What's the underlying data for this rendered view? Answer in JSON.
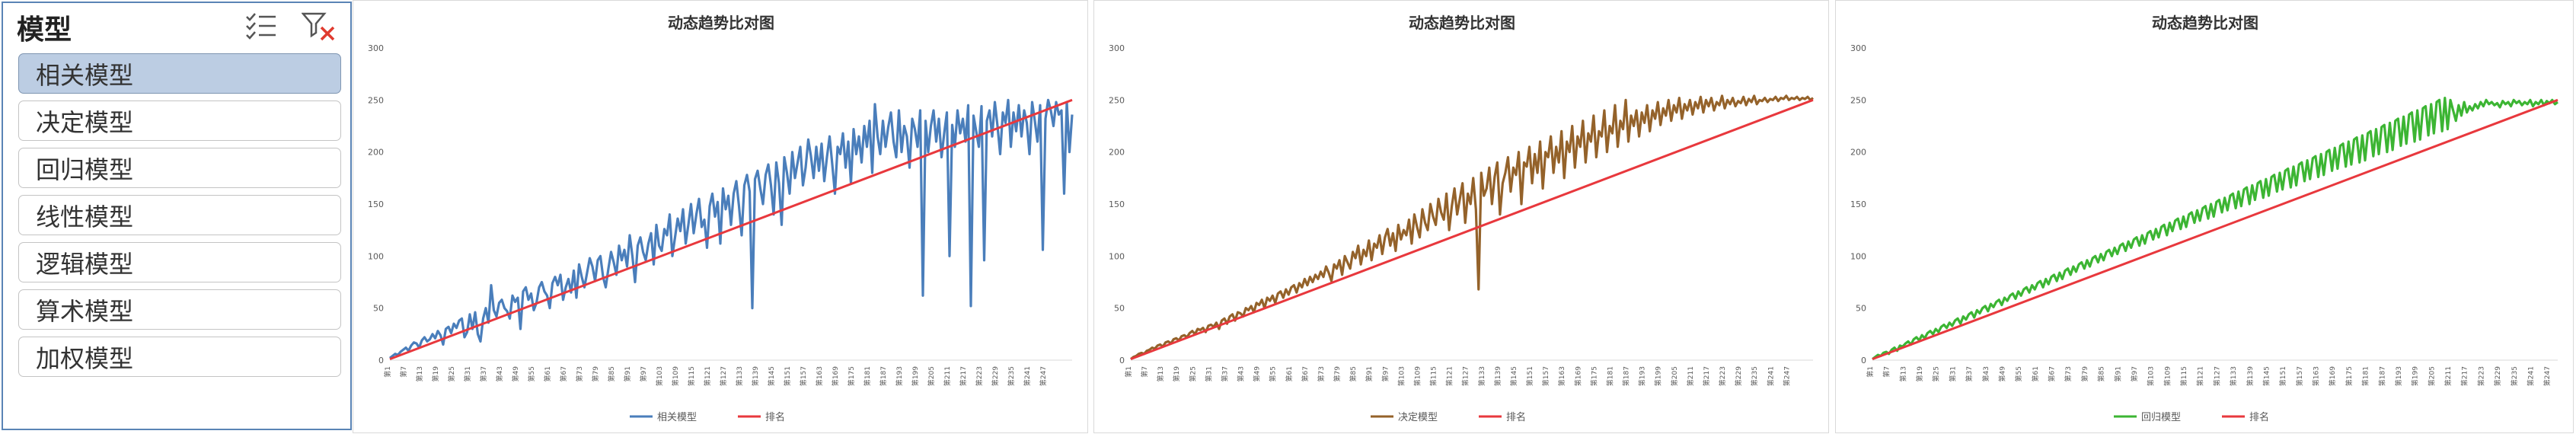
{
  "slicer": {
    "title": "模型",
    "multiselect_icon": "multi-select-list-icon",
    "clear_filter_icon": "clear-filter-icon",
    "items": [
      {
        "label": "相关模型",
        "selected": true
      },
      {
        "label": "决定模型",
        "selected": false
      },
      {
        "label": "回归模型",
        "selected": false
      },
      {
        "label": "线性模型",
        "selected": false
      },
      {
        "label": "逻辑模型",
        "selected": false
      },
      {
        "label": "算术模型",
        "selected": false
      },
      {
        "label": "加权模型",
        "selected": false
      }
    ]
  },
  "chart_data": [
    {
      "type": "line",
      "title": "动态趋势比对图",
      "ylim": [
        0,
        300
      ],
      "yticks": [
        0,
        50,
        100,
        150,
        200,
        250,
        300
      ],
      "xtick_labels": [
        "第1",
        "第7",
        "第13",
        "第19",
        "第25",
        "第31",
        "第37",
        "第43",
        "第49",
        "第55",
        "第61",
        "第67",
        "第73",
        "第79",
        "第85",
        "第91",
        "第97",
        "第103",
        "第109",
        "第115",
        "第121",
        "第127",
        "第133",
        "第139",
        "第145",
        "第151",
        "第157",
        "第163",
        "第169",
        "第175",
        "第181",
        "第187",
        "第193",
        "第199",
        "第205",
        "第211",
        "第217",
        "第223",
        "第229",
        "第235",
        "第241",
        "第247"
      ],
      "legend_position": "bottom",
      "grid": false,
      "series": [
        {
          "name": "相关模型",
          "color": "#4a7ebb",
          "values": [
            2,
            4,
            6,
            5,
            8,
            10,
            12,
            9,
            14,
            17,
            16,
            12,
            19,
            22,
            18,
            20,
            25,
            21,
            28,
            24,
            15,
            30,
            32,
            26,
            35,
            31,
            38,
            40,
            22,
            27,
            44,
            30,
            46,
            25,
            18,
            40,
            50,
            36,
            72,
            48,
            42,
            55,
            58,
            50,
            47,
            40,
            62,
            56,
            60,
            30,
            66,
            70,
            58,
            64,
            48,
            55,
            70,
            75,
            66,
            62,
            50,
            74,
            80,
            72,
            82,
            58,
            70,
            78,
            65,
            86,
            60,
            92,
            80,
            70,
            84,
            98,
            90,
            76,
            96,
            100,
            80,
            70,
            88,
            104,
            94,
            82,
            110,
            96,
            106,
            90,
            120,
            100,
            75,
            110,
            118,
            104,
            96,
            112,
            122,
            92,
            130,
            110,
            105,
            126,
            120,
            140,
            100,
            118,
            136,
            124,
            145,
            112,
            130,
            150,
            122,
            140,
            155,
            128,
            135,
            108,
            148,
            160,
            138,
            152,
            112,
            165,
            145,
            158,
            130,
            160,
            172,
            148,
            120,
            168,
            178,
            162,
            50,
            174,
            182,
            165,
            150,
            178,
            188,
            168,
            140,
            190,
            170,
            130,
            195,
            180,
            160,
            200,
            175,
            190,
            205,
            168,
            185,
            212,
            196,
            175,
            205,
            182,
            208,
            172,
            195,
            215,
            188,
            160,
            205,
            198,
            218,
            185,
            210,
            170,
            222,
            198,
            215,
            190,
            225,
            205,
            230,
            180,
            246,
            215,
            198,
            230,
            205,
            224,
            238,
            210,
            195,
            240,
            200,
            225,
            215,
            185,
            232,
            222,
            205,
            240,
            62,
            230,
            200,
            225,
            240,
            210,
            232,
            195,
            218,
            238,
            100,
            226,
            205,
            240,
            218,
            232,
            210,
            245,
            52,
            235,
            220,
            205,
            244,
            96,
            230,
            240,
            215,
            248,
            225,
            198,
            238,
            228,
            250,
            205,
            238,
            220,
            245,
            215,
            240,
            228,
            198,
            248,
            230,
            210,
            245,
            106,
            232,
            250,
            240,
            225,
            248,
            236,
            240,
            160,
            248,
            200,
            236
          ]
        },
        {
          "name": "排名",
          "color": "#e8383d",
          "linear": true,
          "values": [
            1,
            250
          ]
        }
      ]
    },
    {
      "type": "line",
      "title": "动态趋势比对图",
      "ylim": [
        0,
        300
      ],
      "yticks": [
        0,
        50,
        100,
        150,
        200,
        250,
        300
      ],
      "xtick_labels": [
        "第1",
        "第7",
        "第13",
        "第19",
        "第25",
        "第31",
        "第37",
        "第43",
        "第49",
        "第55",
        "第61",
        "第67",
        "第73",
        "第79",
        "第85",
        "第91",
        "第97",
        "第103",
        "第109",
        "第115",
        "第121",
        "第127",
        "第133",
        "第139",
        "第145",
        "第151",
        "第157",
        "第163",
        "第169",
        "第175",
        "第181",
        "第187",
        "第193",
        "第199",
        "第205",
        "第211",
        "第217",
        "第223",
        "第229",
        "第235",
        "第241",
        "第247"
      ],
      "legend_position": "bottom",
      "grid": false,
      "series": [
        {
          "name": "决定模型",
          "color": "#94622a",
          "values": [
            1,
            3,
            4,
            6,
            7,
            6,
            9,
            10,
            12,
            11,
            14,
            15,
            13,
            17,
            18,
            16,
            20,
            21,
            19,
            23,
            24,
            22,
            26,
            28,
            25,
            30,
            29,
            31,
            27,
            33,
            34,
            32,
            36,
            30,
            38,
            40,
            35,
            42,
            44,
            38,
            46,
            45,
            42,
            50,
            48,
            52,
            46,
            55,
            53,
            58,
            50,
            60,
            57,
            62,
            55,
            64,
            66,
            60,
            68,
            63,
            70,
            72,
            65,
            74,
            70,
            78,
            72,
            80,
            75,
            82,
            78,
            85,
            80,
            90,
            84,
            76,
            92,
            88,
            96,
            82,
            100,
            94,
            88,
            104,
            98,
            110,
            92,
            106,
            100,
            115,
            96,
            112,
            108,
            120,
            102,
            118,
            126,
            110,
            122,
            105,
            130,
            116,
            125,
            120,
            135,
            112,
            140,
            128,
            118,
            145,
            132,
            125,
            150,
            138,
            130,
            155,
            142,
            135,
            160,
            125,
            148,
            165,
            140,
            155,
            170,
            132,
            160,
            150,
            175,
            145,
            68,
            180,
            158,
            165,
            185,
            150,
            176,
            190,
            140,
            170,
            180,
            195,
            162,
            185,
            178,
            200,
            150,
            190,
            186,
            205,
            170,
            198,
            180,
            210,
            165,
            200,
            195,
            215,
            180,
            205,
            190,
            220,
            175,
            210,
            200,
            225,
            185,
            215,
            205,
            230,
            190,
            218,
            210,
            235,
            195,
            220,
            215,
            240,
            200,
            225,
            218,
            245,
            205,
            230,
            222,
            250,
            210,
            235,
            225,
            240,
            215,
            238,
            228,
            245,
            220,
            240,
            232,
            248,
            226,
            242,
            235,
            250,
            230,
            245,
            238,
            252,
            232,
            246,
            240,
            250,
            236,
            248,
            242,
            253,
            238,
            250,
            244,
            252,
            240,
            248,
            245,
            254,
            242,
            250,
            246,
            252,
            244,
            249,
            247,
            253,
            245,
            251,
            248,
            254,
            246,
            250,
            249,
            252,
            248,
            251,
            250,
            253,
            249,
            252,
            251,
            254,
            250,
            252,
            251,
            253,
            250,
            252,
            251,
            253,
            250,
            252
          ]
        },
        {
          "name": "排名",
          "color": "#e8383d",
          "linear": true,
          "values": [
            1,
            250
          ]
        }
      ]
    },
    {
      "type": "line",
      "title": "动态趋势比对图",
      "ylim": [
        0,
        300
      ],
      "yticks": [
        0,
        50,
        100,
        150,
        200,
        250,
        300
      ],
      "xtick_labels": [
        "第1",
        "第7",
        "第13",
        "第19",
        "第25",
        "第31",
        "第37",
        "第43",
        "第49",
        "第55",
        "第61",
        "第67",
        "第73",
        "第79",
        "第85",
        "第91",
        "第97",
        "第103",
        "第109",
        "第115",
        "第121",
        "第127",
        "第133",
        "第139",
        "第145",
        "第151",
        "第157",
        "第163",
        "第169",
        "第175",
        "第181",
        "第187",
        "第193",
        "第199",
        "第205",
        "第211",
        "第217",
        "第223",
        "第229",
        "第235",
        "第241",
        "第247"
      ],
      "legend_position": "bottom",
      "grid": false,
      "series": [
        {
          "name": "回归模型",
          "color": "#3cb533",
          "values": [
            1,
            3,
            5,
            4,
            7,
            8,
            6,
            10,
            12,
            9,
            14,
            13,
            16,
            18,
            15,
            20,
            22,
            19,
            24,
            21,
            26,
            28,
            25,
            30,
            27,
            32,
            34,
            31,
            36,
            33,
            38,
            40,
            35,
            42,
            39,
            44,
            46,
            41,
            48,
            45,
            50,
            52,
            47,
            54,
            51,
            56,
            58,
            53,
            60,
            57,
            62,
            64,
            59,
            66,
            62,
            68,
            70,
            65,
            72,
            68,
            74,
            76,
            70,
            78,
            73,
            80,
            82,
            76,
            84,
            78,
            86,
            88,
            82,
            90,
            85,
            92,
            94,
            88,
            96,
            90,
            98,
            100,
            94,
            102,
            96,
            104,
            106,
            100,
            108,
            102,
            110,
            112,
            105,
            114,
            108,
            116,
            118,
            110,
            120,
            112,
            122,
            124,
            116,
            126,
            118,
            128,
            130,
            120,
            132,
            124,
            134,
            136,
            126,
            138,
            128,
            140,
            142,
            132,
            144,
            134,
            146,
            148,
            136,
            150,
            138,
            152,
            154,
            142,
            156,
            144,
            158,
            160,
            146,
            162,
            148,
            164,
            166,
            150,
            168,
            154,
            170,
            172,
            156,
            174,
            158,
            176,
            178,
            162,
            180,
            164,
            182,
            184,
            166,
            186,
            168,
            188,
            190,
            172,
            192,
            174,
            194,
            196,
            176,
            198,
            178,
            200,
            202,
            182,
            204,
            184,
            206,
            208,
            186,
            210,
            188,
            212,
            214,
            190,
            216,
            192,
            218,
            220,
            196,
            222,
            198,
            224,
            226,
            200,
            228,
            202,
            230,
            232,
            206,
            234,
            208,
            236,
            238,
            210,
            240,
            212,
            242,
            244,
            216,
            246,
            218,
            248,
            250,
            220,
            252,
            222,
            250,
            240,
            230,
            245,
            235,
            248,
            238,
            244,
            240,
            246,
            242,
            248,
            244,
            250,
            246,
            248,
            245,
            247,
            243,
            249,
            246,
            248,
            244,
            250,
            247,
            249,
            245,
            248,
            246,
            250,
            244,
            248,
            246,
            250,
            245,
            249,
            247,
            250,
            246,
            248
          ]
        },
        {
          "name": "排名",
          "color": "#e8383d",
          "linear": true,
          "values": [
            1,
            250
          ]
        }
      ]
    }
  ]
}
